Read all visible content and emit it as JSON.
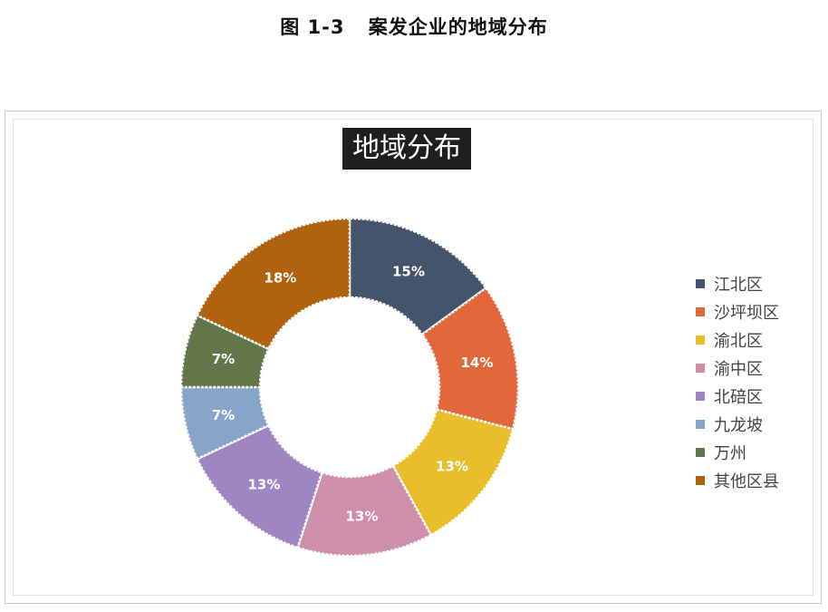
{
  "caption": {
    "prefix": "图",
    "number": "1-3",
    "text": "案发企业的地域分布"
  },
  "chart_data": {
    "type": "pie",
    "donut": true,
    "title": "地域分布",
    "legend_position": "right",
    "categories": [
      "江北区",
      "沙坪坝区",
      "渝北区",
      "渝中区",
      "北碚区",
      "九龙坡",
      "万州",
      "其他区县"
    ],
    "values": [
      15,
      14,
      13,
      13,
      13,
      7,
      7,
      18
    ],
    "labels": [
      "15%",
      "14%",
      "13%",
      "13%",
      "13%",
      "7%",
      "7%",
      "18%"
    ],
    "colors": [
      "#44546A",
      "#E2683C",
      "#E8BE2B",
      "#D08FA9",
      "#9E86C2",
      "#86A5C8",
      "#63764A",
      "#B0620F"
    ]
  }
}
